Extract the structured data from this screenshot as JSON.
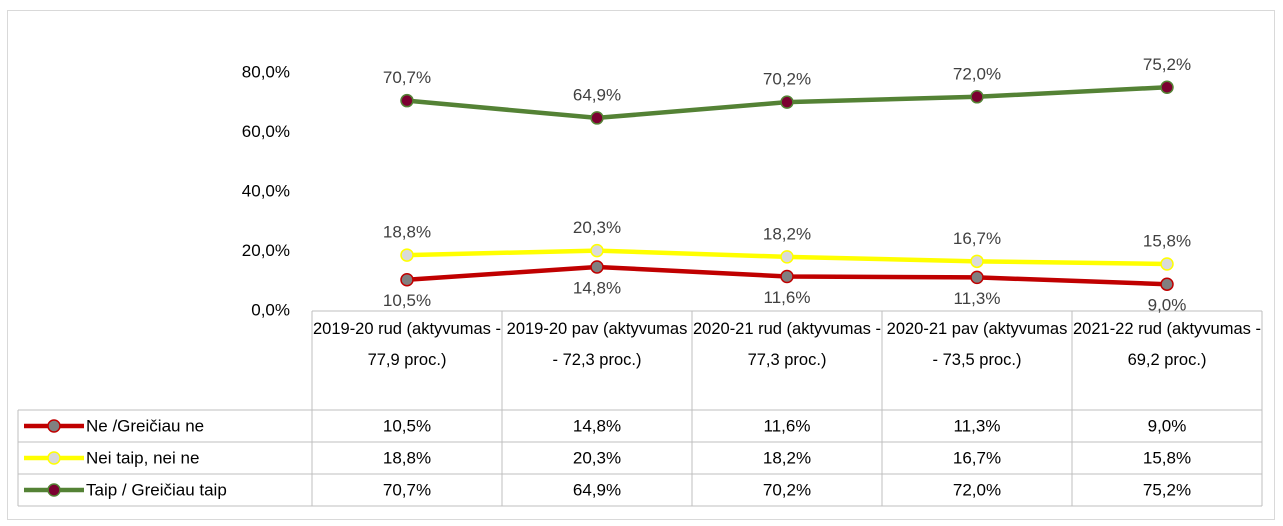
{
  "chart_data": {
    "type": "line",
    "categories": [
      "2019-20 rud (aktyvumas - 77,9 proc.)",
      "2019-20 pav (aktyvumas - 72,3 proc.)",
      "2020-21 rud (aktyvumas - 77,3 proc.)",
      "2020-21 pav (aktyvumas - 73,5 proc.)",
      "2021-22 rud (aktyvumas - 69,2 proc.)"
    ],
    "series": [
      {
        "name": "Ne /Greičiau ne",
        "color": "#c00000",
        "marker_color": "#808080",
        "label_position": "below",
        "values": [
          10.5,
          14.8,
          11.6,
          11.3,
          9.0
        ],
        "value_labels": [
          "10,5%",
          "14,8%",
          "11,6%",
          "11,3%",
          "9,0%"
        ]
      },
      {
        "name": "Nei taip, nei ne",
        "color": "#ffff00",
        "marker_color": "#d9d9d9",
        "label_position": "above",
        "values": [
          18.8,
          20.3,
          18.2,
          16.7,
          15.8
        ],
        "value_labels": [
          "18,8%",
          "20,3%",
          "18,2%",
          "16,7%",
          "15,8%"
        ]
      },
      {
        "name": "Taip / Greičiau taip",
        "color": "#548235",
        "marker_color": "#7b0030",
        "label_position": "above",
        "values": [
          70.7,
          64.9,
          70.2,
          72.0,
          75.2
        ],
        "value_labels": [
          "70,7%",
          "64,9%",
          "70,2%",
          "72,0%",
          "75,2%"
        ]
      }
    ],
    "ylim": [
      0,
      80
    ],
    "yticks": [
      {
        "value": 0,
        "label": "0,0%"
      },
      {
        "value": 20,
        "label": "20,0%"
      },
      {
        "value": 40,
        "label": "40,0%"
      },
      {
        "value": 60,
        "label": "60,0%"
      },
      {
        "value": 80,
        "label": "80,0%"
      }
    ],
    "grid": false
  }
}
